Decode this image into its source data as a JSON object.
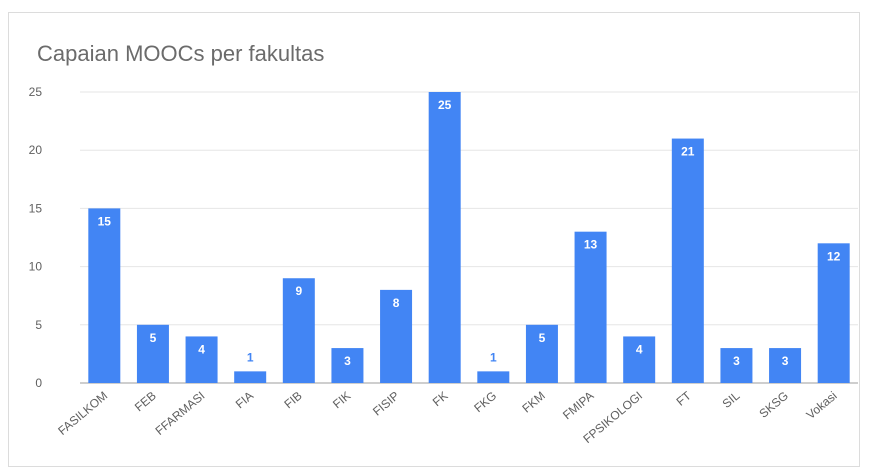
{
  "chart_data": {
    "type": "bar",
    "title": "Capaian MOOCs per fakultas",
    "xlabel": "",
    "ylabel": "",
    "ylim": [
      0,
      25
    ],
    "yticks": [
      0,
      5,
      10,
      15,
      20,
      25
    ],
    "grid": true,
    "categories": [
      "FASILKOM",
      "FEB",
      "FFARMASI",
      "FIA",
      "FIB",
      "FIK",
      "FISIP",
      "FK",
      "FKG",
      "FKM",
      "FMIPA",
      "FPSIKOLOGI",
      "FT",
      "SIL",
      "SKSG",
      "Vokasi"
    ],
    "values": [
      15,
      5,
      4,
      1,
      9,
      3,
      8,
      25,
      1,
      5,
      13,
      4,
      21,
      3,
      3,
      12
    ],
    "bar_color": "#4285f4",
    "label_color_inside": "#ffffff",
    "label_color_outside": "#4285f4"
  }
}
